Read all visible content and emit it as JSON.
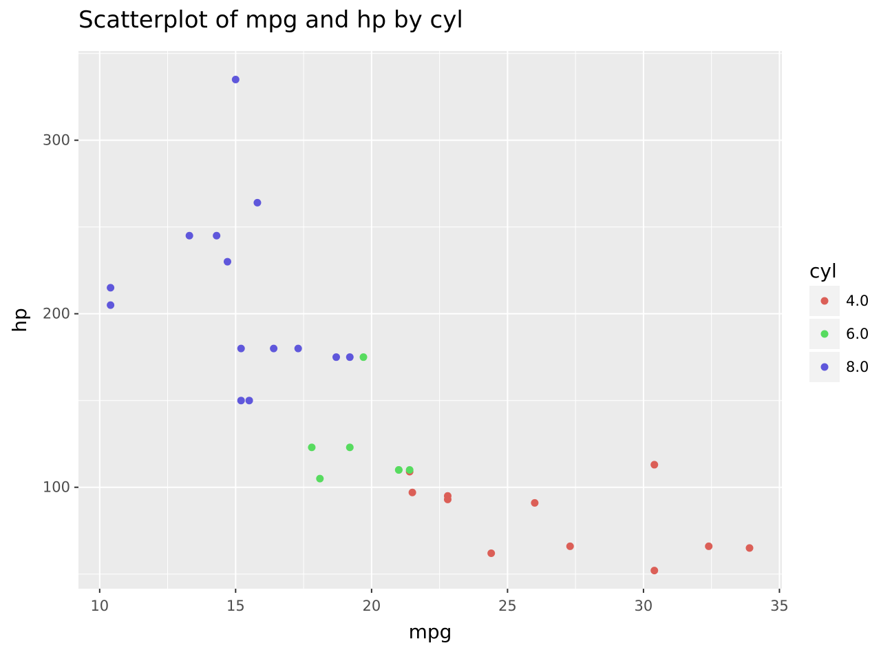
{
  "chart_data": {
    "type": "scatter",
    "title": "Scatterplot of mpg and hp by cyl",
    "xlabel": "mpg",
    "ylabel": "hp",
    "xlim": [
      9.22,
      35.09
    ],
    "ylim": [
      41.55,
      351.45
    ],
    "x_ticks": [
      10,
      15,
      20,
      25,
      30,
      35
    ],
    "y_ticks": [
      100,
      200,
      300
    ],
    "x_tick_labels": [
      "10",
      "15",
      "20",
      "25",
      "30",
      "35"
    ],
    "y_tick_labels": [
      "100",
      "200",
      "300"
    ],
    "grid": true,
    "legend": {
      "title": "cyl",
      "position": "right"
    },
    "series": [
      {
        "name": "4.0",
        "color": "#db5f57",
        "points": [
          [
            22.8,
            93
          ],
          [
            24.4,
            62
          ],
          [
            22.8,
            95
          ],
          [
            32.4,
            66
          ],
          [
            30.4,
            52
          ],
          [
            33.9,
            65
          ],
          [
            21.5,
            97
          ],
          [
            27.3,
            66
          ],
          [
            26.0,
            91
          ],
          [
            30.4,
            113
          ],
          [
            21.4,
            109
          ]
        ]
      },
      {
        "name": "6.0",
        "color": "#57db5f",
        "points": [
          [
            21.0,
            110
          ],
          [
            21.0,
            110
          ],
          [
            21.4,
            110
          ],
          [
            18.1,
            105
          ],
          [
            19.2,
            123
          ],
          [
            17.8,
            123
          ],
          [
            19.7,
            175
          ]
        ]
      },
      {
        "name": "8.0",
        "color": "#5f57db",
        "points": [
          [
            18.7,
            175
          ],
          [
            14.3,
            245
          ],
          [
            16.4,
            180
          ],
          [
            17.3,
            180
          ],
          [
            15.2,
            180
          ],
          [
            10.4,
            205
          ],
          [
            10.4,
            215
          ],
          [
            14.7,
            230
          ],
          [
            15.5,
            150
          ],
          [
            15.2,
            150
          ],
          [
            13.3,
            245
          ],
          [
            19.2,
            175
          ],
          [
            15.8,
            264
          ],
          [
            15.0,
            335
          ]
        ]
      }
    ]
  }
}
